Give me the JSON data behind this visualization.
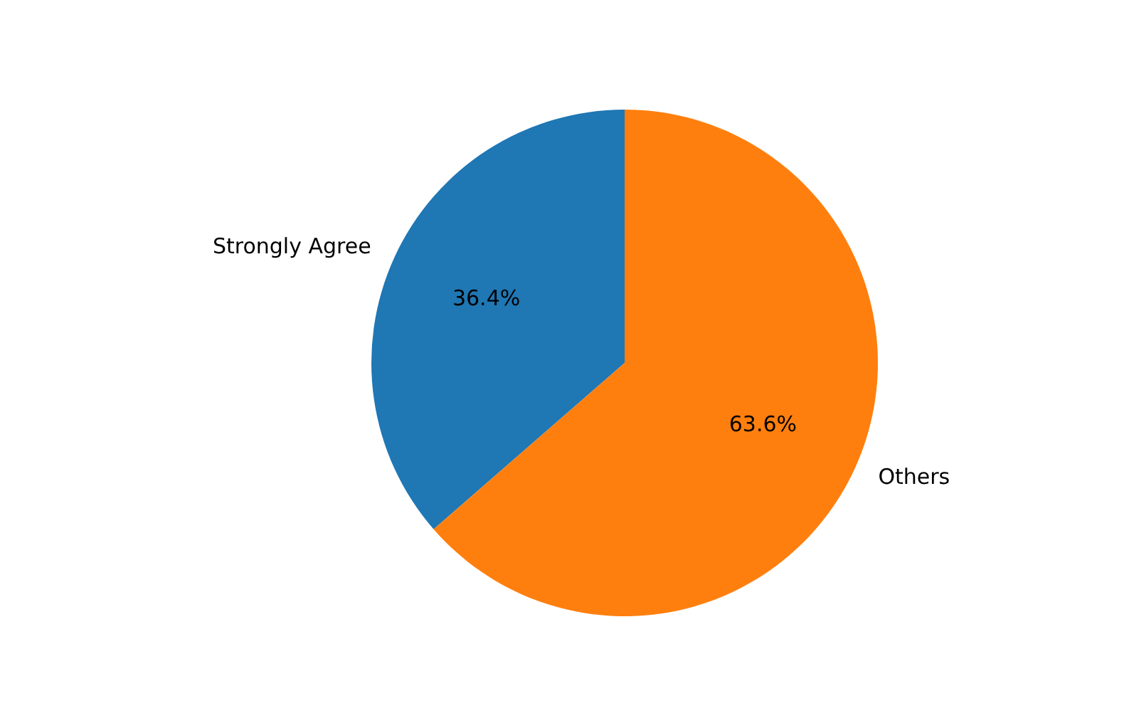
{
  "chart_data": {
    "type": "pie",
    "categories": [
      "Strongly Agree",
      "Others"
    ],
    "values": [
      36.4,
      63.6
    ],
    "colors": [
      "#1f77b4",
      "#ff7f0e"
    ],
    "value_labels": [
      "36.4%",
      "63.6%"
    ],
    "legend": false
  }
}
